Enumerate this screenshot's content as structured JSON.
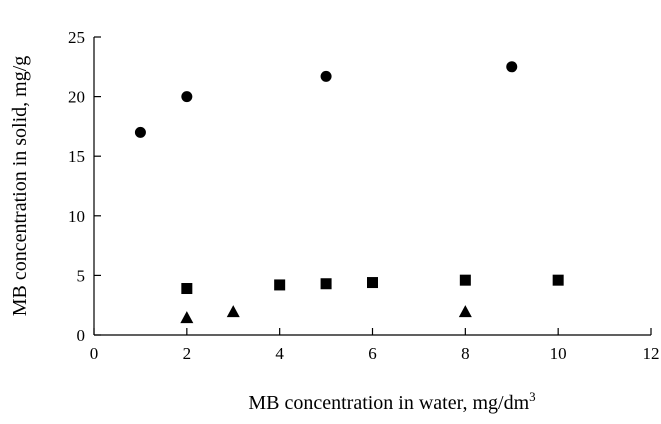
{
  "chart_data": {
    "type": "scatter",
    "xlabel": "MB concentration in water, mg/dm",
    "xlabel_superscript": "3",
    "ylabel": "MB concentration in solid, mg/g",
    "xlim": [
      0,
      12
    ],
    "ylim": [
      0,
      25
    ],
    "x_ticks": [
      "0",
      "2",
      "4",
      "6",
      "8",
      "10",
      "12"
    ],
    "y_ticks": [
      "0",
      "5",
      "10",
      "15",
      "20",
      "25"
    ],
    "grid": false,
    "series": [
      {
        "marker": "circle",
        "color": "#000000",
        "points": [
          {
            "x": 1,
            "y": 17.0
          },
          {
            "x": 2,
            "y": 20.0
          },
          {
            "x": 5,
            "y": 21.7
          },
          {
            "x": 9,
            "y": 22.5
          }
        ]
      },
      {
        "marker": "square",
        "color": "#000000",
        "points": [
          {
            "x": 2,
            "y": 3.9
          },
          {
            "x": 4,
            "y": 4.2
          },
          {
            "x": 5,
            "y": 4.3
          },
          {
            "x": 6,
            "y": 4.4
          },
          {
            "x": 8,
            "y": 4.6
          },
          {
            "x": 10,
            "y": 4.6
          }
        ]
      },
      {
        "marker": "triangle",
        "color": "#000000",
        "points": [
          {
            "x": 2,
            "y": 1.4
          },
          {
            "x": 3,
            "y": 1.9
          },
          {
            "x": 8,
            "y": 1.9
          }
        ]
      }
    ]
  }
}
